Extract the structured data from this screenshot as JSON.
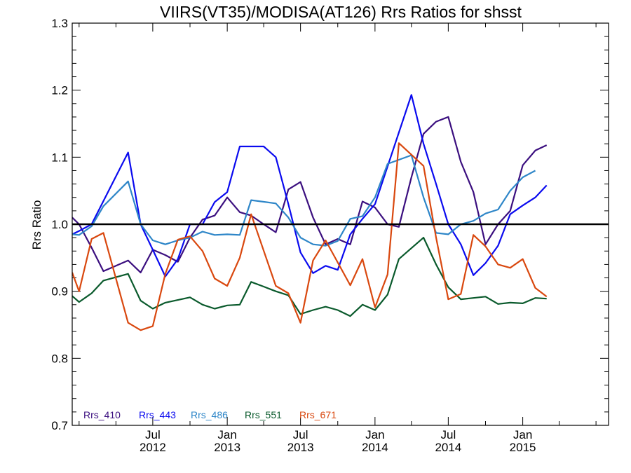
{
  "chart_data": {
    "type": "line",
    "title": "VIIRS(VT35)/MODISA(AT126)  Rrs Ratios for shsst",
    "xlabel": "",
    "ylabel": "Rrs Ratio",
    "xlim": [
      "2011-12-15",
      "2015-08-01"
    ],
    "ylim": [
      0.7,
      1.3
    ],
    "yticks": [
      "0.7",
      "0.8",
      "0.9",
      "1.0",
      "1.1",
      "1.2",
      "1.3"
    ],
    "xticks": [
      {
        "date": "2012-07-01",
        "line1": "Jul",
        "line2": "2012"
      },
      {
        "date": "2013-01-01",
        "line1": "Jan",
        "line2": "2013"
      },
      {
        "date": "2013-07-01",
        "line1": "Jul",
        "line2": "2013"
      },
      {
        "date": "2014-01-01",
        "line1": "Jan",
        "line2": "2014"
      },
      {
        "date": "2014-07-01",
        "line1": "Jul",
        "line2": "2014"
      },
      {
        "date": "2015-01-01",
        "line1": "Jan",
        "line2": "2015"
      }
    ],
    "reference_line": 1.0,
    "grid": false,
    "legend_position": "bottom-left",
    "series": [
      {
        "name": "Rrs_410",
        "color": "#3b0f7f",
        "points": [
          [
            "2011-12-15",
            1.01
          ],
          [
            "2012-01-01",
            1.0
          ],
          [
            "2012-02-01",
            0.965
          ],
          [
            "2012-03-01",
            0.93
          ],
          [
            "2012-04-01",
            0.938
          ],
          [
            "2012-05-01",
            0.946
          ],
          [
            "2012-06-01",
            0.928
          ],
          [
            "2012-07-01",
            0.962
          ],
          [
            "2012-08-01",
            0.954
          ],
          [
            "2012-09-01",
            0.944
          ],
          [
            "2012-10-01",
            0.98
          ],
          [
            "2012-11-01",
            1.007
          ],
          [
            "2012-12-01",
            1.013
          ],
          [
            "2013-01-01",
            1.04
          ],
          [
            "2013-02-01",
            1.018
          ],
          [
            "2013-03-01",
            1.013
          ],
          [
            "2013-04-01",
            1.0
          ],
          [
            "2013-05-01",
            0.988
          ],
          [
            "2013-06-01",
            1.052
          ],
          [
            "2013-07-01",
            1.063
          ],
          [
            "2013-08-01",
            1.01
          ],
          [
            "2013-09-01",
            0.97
          ],
          [
            "2013-10-01",
            0.978
          ],
          [
            "2013-11-01",
            0.97
          ],
          [
            "2013-12-01",
            1.034
          ],
          [
            "2014-01-01",
            1.025
          ],
          [
            "2014-02-01",
            1.0
          ],
          [
            "2014-03-01",
            0.996
          ],
          [
            "2014-04-01",
            1.07
          ],
          [
            "2014-05-01",
            1.135
          ],
          [
            "2014-06-01",
            1.153
          ],
          [
            "2014-07-01",
            1.16
          ],
          [
            "2014-08-01",
            1.093
          ],
          [
            "2014-09-01",
            1.048
          ],
          [
            "2014-10-01",
            0.97
          ],
          [
            "2014-11-01",
            1.0
          ],
          [
            "2014-12-01",
            1.02
          ],
          [
            "2015-01-01",
            1.088
          ],
          [
            "2015-02-01",
            1.11
          ],
          [
            "2015-03-01",
            1.118
          ]
        ]
      },
      {
        "name": "Rrs_443",
        "color": "#0a0aef",
        "points": [
          [
            "2011-12-15",
            0.985
          ],
          [
            "2012-01-01",
            0.99
          ],
          [
            "2012-02-01",
            1.0
          ],
          [
            "2012-05-01",
            1.107
          ],
          [
            "2012-06-01",
            1.0
          ],
          [
            "2012-07-01",
            0.962
          ],
          [
            "2012-08-01",
            0.922
          ],
          [
            "2012-09-01",
            0.948
          ],
          [
            "2012-10-01",
            1.0
          ],
          [
            "2012-11-01",
            1.0
          ],
          [
            "2012-12-01",
            1.033
          ],
          [
            "2013-01-01",
            1.048
          ],
          [
            "2013-02-01",
            1.116
          ],
          [
            "2013-04-01",
            1.116
          ],
          [
            "2013-05-01",
            1.1
          ],
          [
            "2013-06-01",
            1.03
          ],
          [
            "2013-07-01",
            0.958
          ],
          [
            "2013-08-01",
            0.927
          ],
          [
            "2013-09-01",
            0.938
          ],
          [
            "2013-10-01",
            0.932
          ],
          [
            "2013-11-01",
            0.985
          ],
          [
            "2013-12-01",
            1.008
          ],
          [
            "2014-01-01",
            1.03
          ],
          [
            "2014-04-01",
            1.193
          ],
          [
            "2014-05-01",
            1.12
          ],
          [
            "2014-06-01",
            1.06
          ],
          [
            "2014-07-01",
            1.0
          ],
          [
            "2014-08-01",
            0.97
          ],
          [
            "2014-09-01",
            0.924
          ],
          [
            "2014-10-01",
            0.942
          ],
          [
            "2014-11-01",
            0.968
          ],
          [
            "2014-12-01",
            1.015
          ],
          [
            "2015-01-01",
            1.028
          ],
          [
            "2015-02-01",
            1.04
          ],
          [
            "2015-03-01",
            1.058
          ]
        ]
      },
      {
        "name": "Rrs_486",
        "color": "#2e86c8",
        "points": [
          [
            "2011-12-15",
            0.985
          ],
          [
            "2012-01-01",
            0.984
          ],
          [
            "2012-02-01",
            0.997
          ],
          [
            "2012-03-01",
            1.027
          ],
          [
            "2012-05-01",
            1.064
          ],
          [
            "2012-06-01",
            1.0
          ],
          [
            "2012-07-01",
            0.976
          ],
          [
            "2012-08-01",
            0.97
          ],
          [
            "2012-09-01",
            0.976
          ],
          [
            "2012-10-01",
            0.98
          ],
          [
            "2012-11-01",
            0.989
          ],
          [
            "2012-12-01",
            0.984
          ],
          [
            "2013-01-01",
            0.985
          ],
          [
            "2013-02-01",
            0.984
          ],
          [
            "2013-03-01",
            1.036
          ],
          [
            "2013-05-01",
            1.031
          ],
          [
            "2013-06-01",
            1.01
          ],
          [
            "2013-07-01",
            0.98
          ],
          [
            "2013-08-01",
            0.97
          ],
          [
            "2013-09-01",
            0.968
          ],
          [
            "2013-10-01",
            0.975
          ],
          [
            "2013-11-01",
            1.008
          ],
          [
            "2013-12-01",
            1.012
          ],
          [
            "2014-01-01",
            1.04
          ],
          [
            "2014-02-01",
            1.09
          ],
          [
            "2014-04-01",
            1.103
          ],
          [
            "2014-05-01",
            1.04
          ],
          [
            "2014-06-01",
            0.987
          ],
          [
            "2014-07-01",
            0.985
          ],
          [
            "2014-08-01",
            1.0
          ],
          [
            "2014-09-01",
            1.005
          ],
          [
            "2014-10-01",
            1.016
          ],
          [
            "2014-11-01",
            1.022
          ],
          [
            "2014-12-01",
            1.05
          ],
          [
            "2015-01-01",
            1.07
          ],
          [
            "2015-02-01",
            1.08
          ]
        ]
      },
      {
        "name": "Rrs_551",
        "color": "#0a5a2c",
        "points": [
          [
            "2011-12-15",
            0.893
          ],
          [
            "2012-01-01",
            0.884
          ],
          [
            "2012-02-01",
            0.897
          ],
          [
            "2012-03-01",
            0.916
          ],
          [
            "2012-05-01",
            0.926
          ],
          [
            "2012-06-01",
            0.886
          ],
          [
            "2012-07-01",
            0.874
          ],
          [
            "2012-08-01",
            0.883
          ],
          [
            "2012-09-01",
            0.887
          ],
          [
            "2012-10-01",
            0.891
          ],
          [
            "2012-11-01",
            0.88
          ],
          [
            "2012-12-01",
            0.874
          ],
          [
            "2013-01-01",
            0.879
          ],
          [
            "2013-02-01",
            0.88
          ],
          [
            "2013-03-01",
            0.914
          ],
          [
            "2013-04-01",
            0.907
          ],
          [
            "2013-05-01",
            0.9
          ],
          [
            "2013-06-01",
            0.894
          ],
          [
            "2013-07-01",
            0.866
          ],
          [
            "2013-08-01",
            0.872
          ],
          [
            "2013-09-01",
            0.877
          ],
          [
            "2013-10-01",
            0.872
          ],
          [
            "2013-11-01",
            0.863
          ],
          [
            "2013-12-01",
            0.88
          ],
          [
            "2014-01-01",
            0.872
          ],
          [
            "2014-02-01",
            0.895
          ],
          [
            "2014-03-01",
            0.948
          ],
          [
            "2014-05-01",
            0.98
          ],
          [
            "2014-06-01",
            0.94
          ],
          [
            "2014-07-01",
            0.906
          ],
          [
            "2014-08-01",
            0.888
          ],
          [
            "2014-09-01",
            0.89
          ],
          [
            "2014-10-01",
            0.892
          ],
          [
            "2014-11-01",
            0.881
          ],
          [
            "2014-12-01",
            0.883
          ],
          [
            "2015-01-01",
            0.882
          ],
          [
            "2015-02-01",
            0.89
          ],
          [
            "2015-03-01",
            0.889
          ]
        ]
      },
      {
        "name": "Rrs_671",
        "color": "#d9480f",
        "points": [
          [
            "2011-12-15",
            0.928
          ],
          [
            "2012-01-01",
            0.9
          ],
          [
            "2012-02-01",
            0.978
          ],
          [
            "2012-03-01",
            0.987
          ],
          [
            "2012-05-01",
            0.853
          ],
          [
            "2012-06-01",
            0.842
          ],
          [
            "2012-07-01",
            0.848
          ],
          [
            "2012-08-01",
            0.926
          ],
          [
            "2012-09-01",
            0.977
          ],
          [
            "2012-10-01",
            0.982
          ],
          [
            "2012-11-01",
            0.96
          ],
          [
            "2012-12-01",
            0.919
          ],
          [
            "2013-01-01",
            0.908
          ],
          [
            "2013-02-01",
            0.95
          ],
          [
            "2013-03-01",
            1.015
          ],
          [
            "2013-05-01",
            0.908
          ],
          [
            "2013-06-01",
            0.897
          ],
          [
            "2013-07-01",
            0.853
          ],
          [
            "2013-08-01",
            0.946
          ],
          [
            "2013-09-01",
            0.976
          ],
          [
            "2013-10-01",
            0.943
          ],
          [
            "2013-11-01",
            0.909
          ],
          [
            "2013-12-01",
            0.948
          ],
          [
            "2014-01-01",
            0.876
          ],
          [
            "2014-02-01",
            0.925
          ],
          [
            "2014-03-01",
            1.121
          ],
          [
            "2014-05-01",
            1.087
          ],
          [
            "2014-06-01",
            0.98
          ],
          [
            "2014-07-01",
            0.888
          ],
          [
            "2014-08-01",
            0.896
          ],
          [
            "2014-09-01",
            0.984
          ],
          [
            "2014-10-01",
            0.967
          ],
          [
            "2014-11-01",
            0.94
          ],
          [
            "2014-12-01",
            0.935
          ],
          [
            "2015-01-01",
            0.948
          ],
          [
            "2015-02-01",
            0.905
          ],
          [
            "2015-03-01",
            0.892
          ]
        ]
      }
    ]
  }
}
